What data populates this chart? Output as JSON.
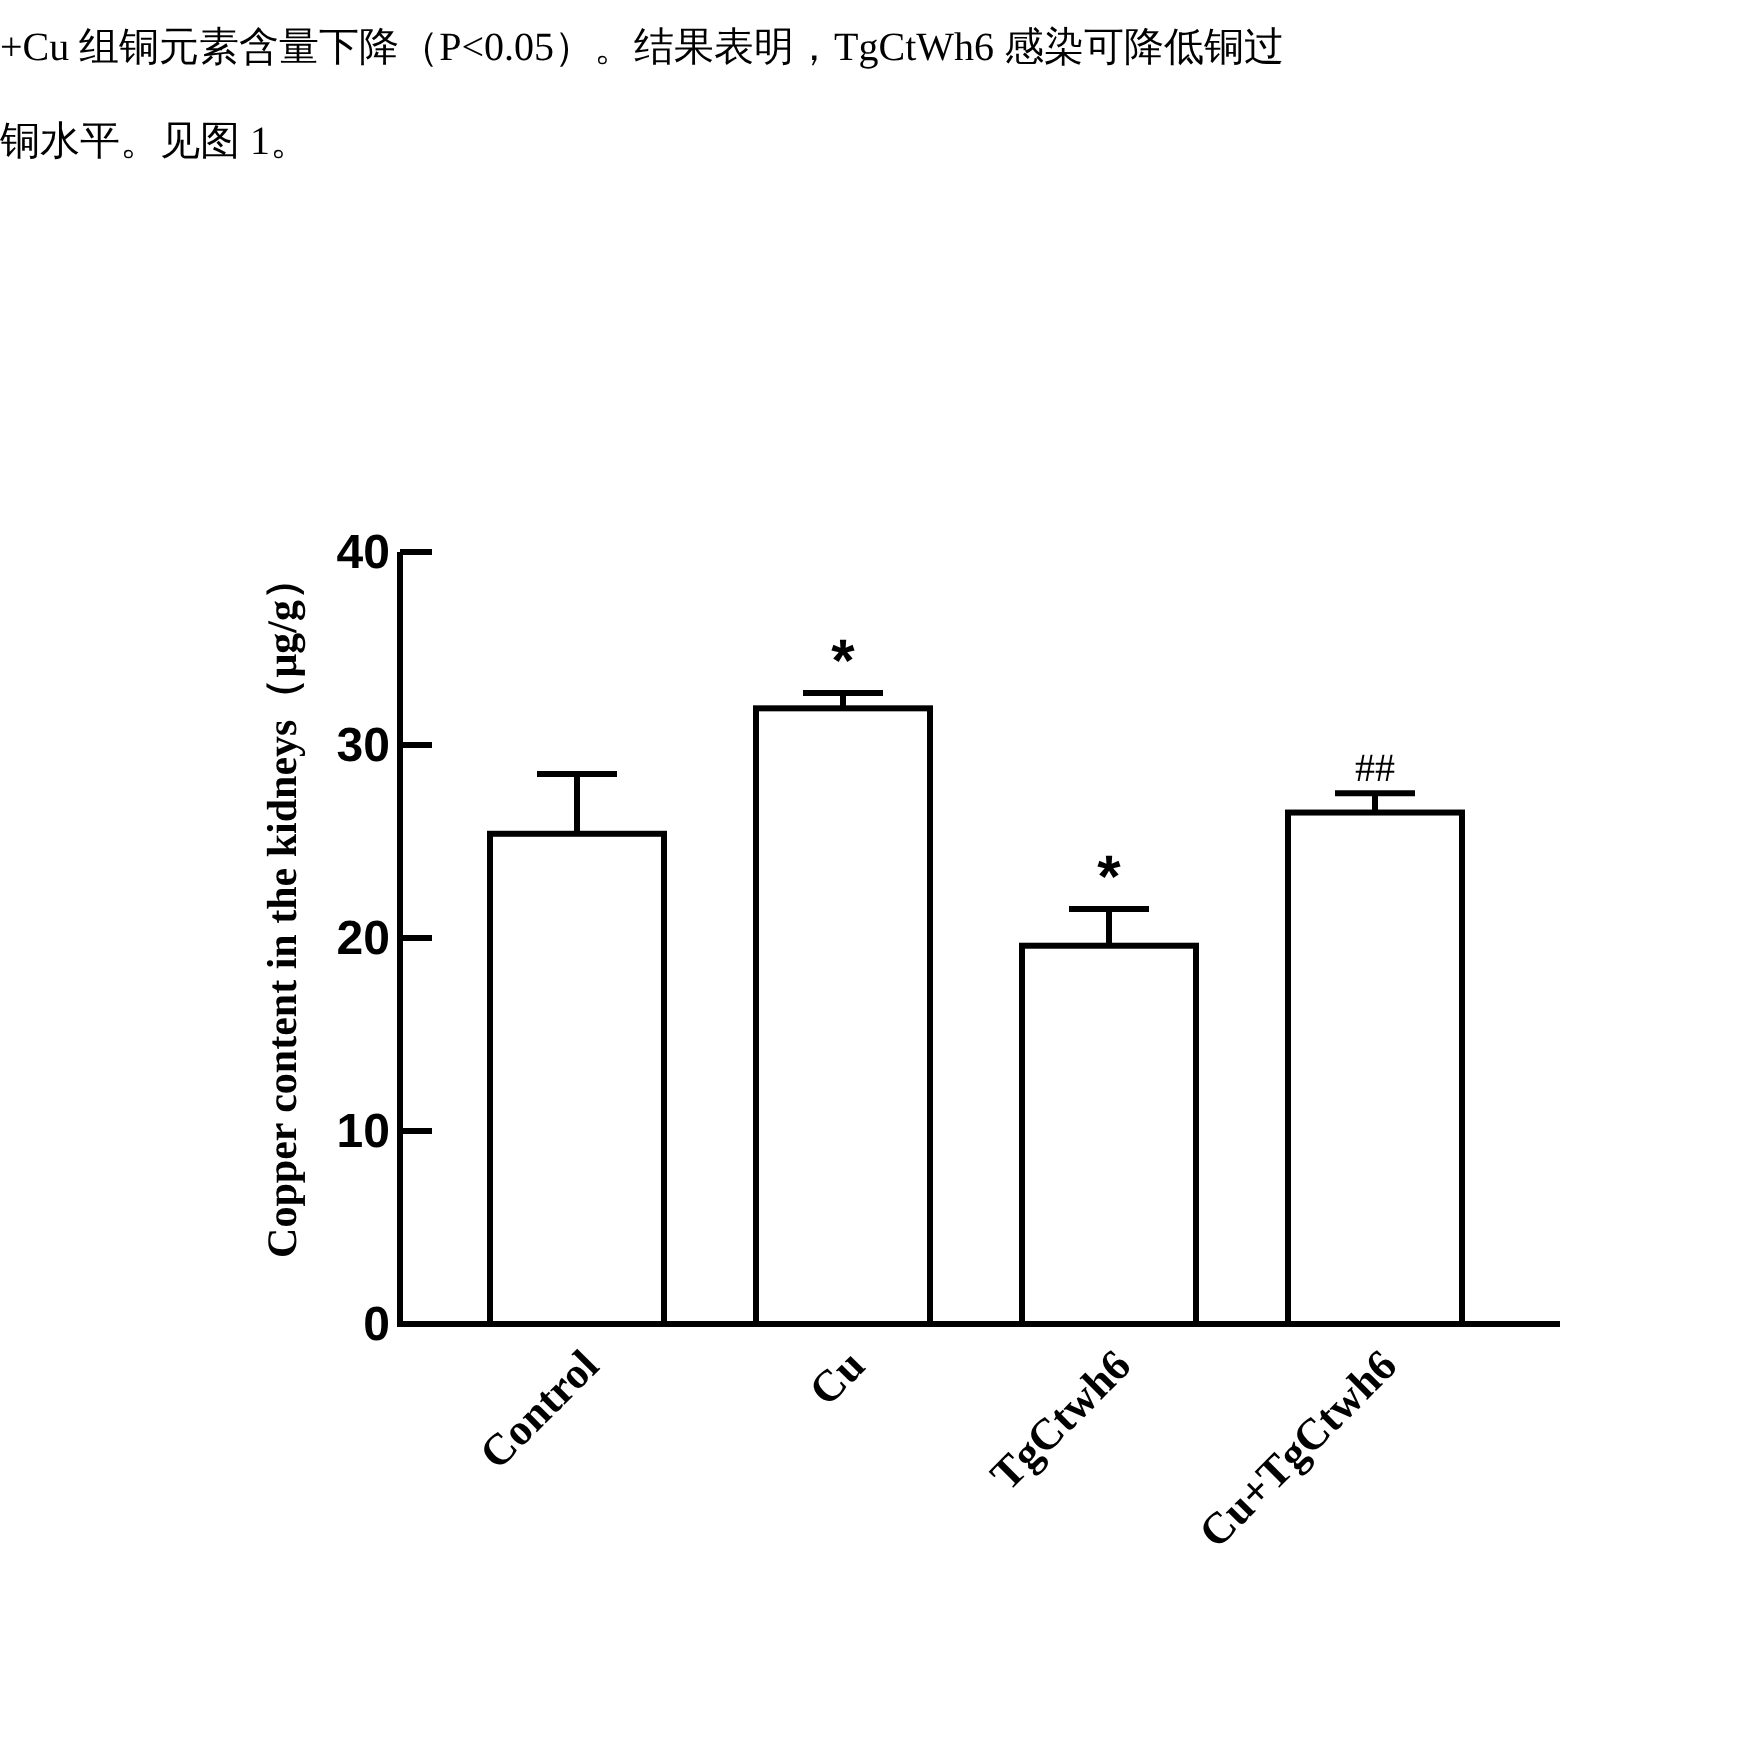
{
  "chart_data": {
    "type": "bar",
    "ylabel": "Copper content in the kidneys（μg/g）",
    "categories": [
      "Control",
      "Cu",
      "TgCtwh6",
      "Cu+TgCtwh6"
    ],
    "values": [
      25.4,
      31.9,
      19.6,
      26.5
    ],
    "errors": [
      3.1,
      0.8,
      1.9,
      1.0
    ],
    "color": "#ffffff",
    "ylim": [
      0,
      40
    ],
    "yticks": [
      0,
      10,
      20,
      30,
      40
    ],
    "annotations": [
      "+Cu 组铜元素含量下降（P<0.05）。结果表明，TgCtWh6 感染可降低铜过",
      "铜水平。见图 1。"
    ],
    "value_labels": [
      null,
      "*",
      "*",
      "##"
    ]
  }
}
